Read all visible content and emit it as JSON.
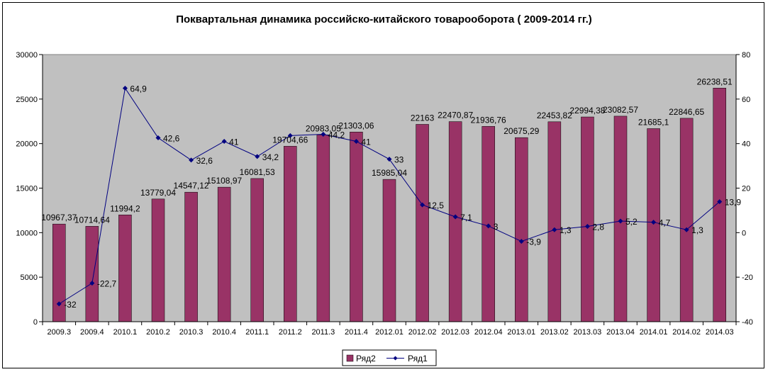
{
  "chart_data": {
    "type": "bar",
    "title": "Поквартальная динамика российско-китайского товарооборота  ( 2009-2014 гг.)",
    "categories": [
      "2009.3",
      "2009.4",
      "2010.1",
      "2010.2",
      "2010.3",
      "2010.4",
      "2011.1",
      "2011.2",
      "2011.3",
      "2011.4",
      "2012.01",
      "2012.02",
      "2012.03",
      "2012.04",
      "2013.01",
      "2013.02",
      "2013.03",
      "2013.04",
      "2014.01",
      "2014.02",
      "2014.03"
    ],
    "series": [
      {
        "name": "Ряд2",
        "type": "bar",
        "axis": "left",
        "color": "#993366",
        "values": [
          10967.37,
          10714.64,
          11994.2,
          13779.04,
          14547.12,
          15108.97,
          16081.53,
          19704.66,
          20983.05,
          21303.06,
          15985.04,
          22163,
          22470.87,
          21936.76,
          20675.29,
          22453.82,
          22994.38,
          23082.57,
          21685.1,
          22846.65,
          26238.51
        ],
        "labels": [
          "10967,37",
          "10714,64",
          "11994,2",
          "13779,04",
          "14547,12",
          "15108,97",
          "16081,53",
          "19704,66",
          "20983,05",
          "21303,06",
          "15985,04",
          "22163",
          "22470,87",
          "21936,76",
          "20675,29",
          "22453,82",
          "22994,38",
          "23082,57",
          "21685,1",
          "22846,65",
          "26238,51"
        ]
      },
      {
        "name": "Ряд1",
        "type": "line",
        "axis": "right",
        "color": "#000080",
        "values": [
          -32,
          -22.7,
          64.9,
          42.6,
          32.6,
          41,
          34.2,
          43.6,
          44.2,
          41,
          33,
          12.5,
          7.1,
          3,
          -3.9,
          1.3,
          2.8,
          5.2,
          4.7,
          1.3,
          13.9
        ],
        "labels": [
          "-32",
          "-22,7",
          "64,9",
          "42,6",
          "32,6",
          "41",
          "34,2",
          "",
          "44,2",
          "41",
          "33",
          "12,5",
          "7,1",
          "3",
          "-3,9",
          "1,3",
          "2,8",
          "5,2",
          "4,7",
          "1,3",
          "13,9"
        ]
      }
    ],
    "ylim": [
      0,
      30000
    ],
    "y_ticks": [
      "0",
      "5000",
      "10000",
      "15000",
      "20000",
      "25000",
      "30000"
    ],
    "y2lim": [
      -40,
      80
    ],
    "y2_ticks": [
      "-40",
      "-20",
      "0",
      "20",
      "40",
      "60",
      "80"
    ],
    "plot_background": "#c0c0c0",
    "grid": false,
    "legend": "bottom"
  }
}
